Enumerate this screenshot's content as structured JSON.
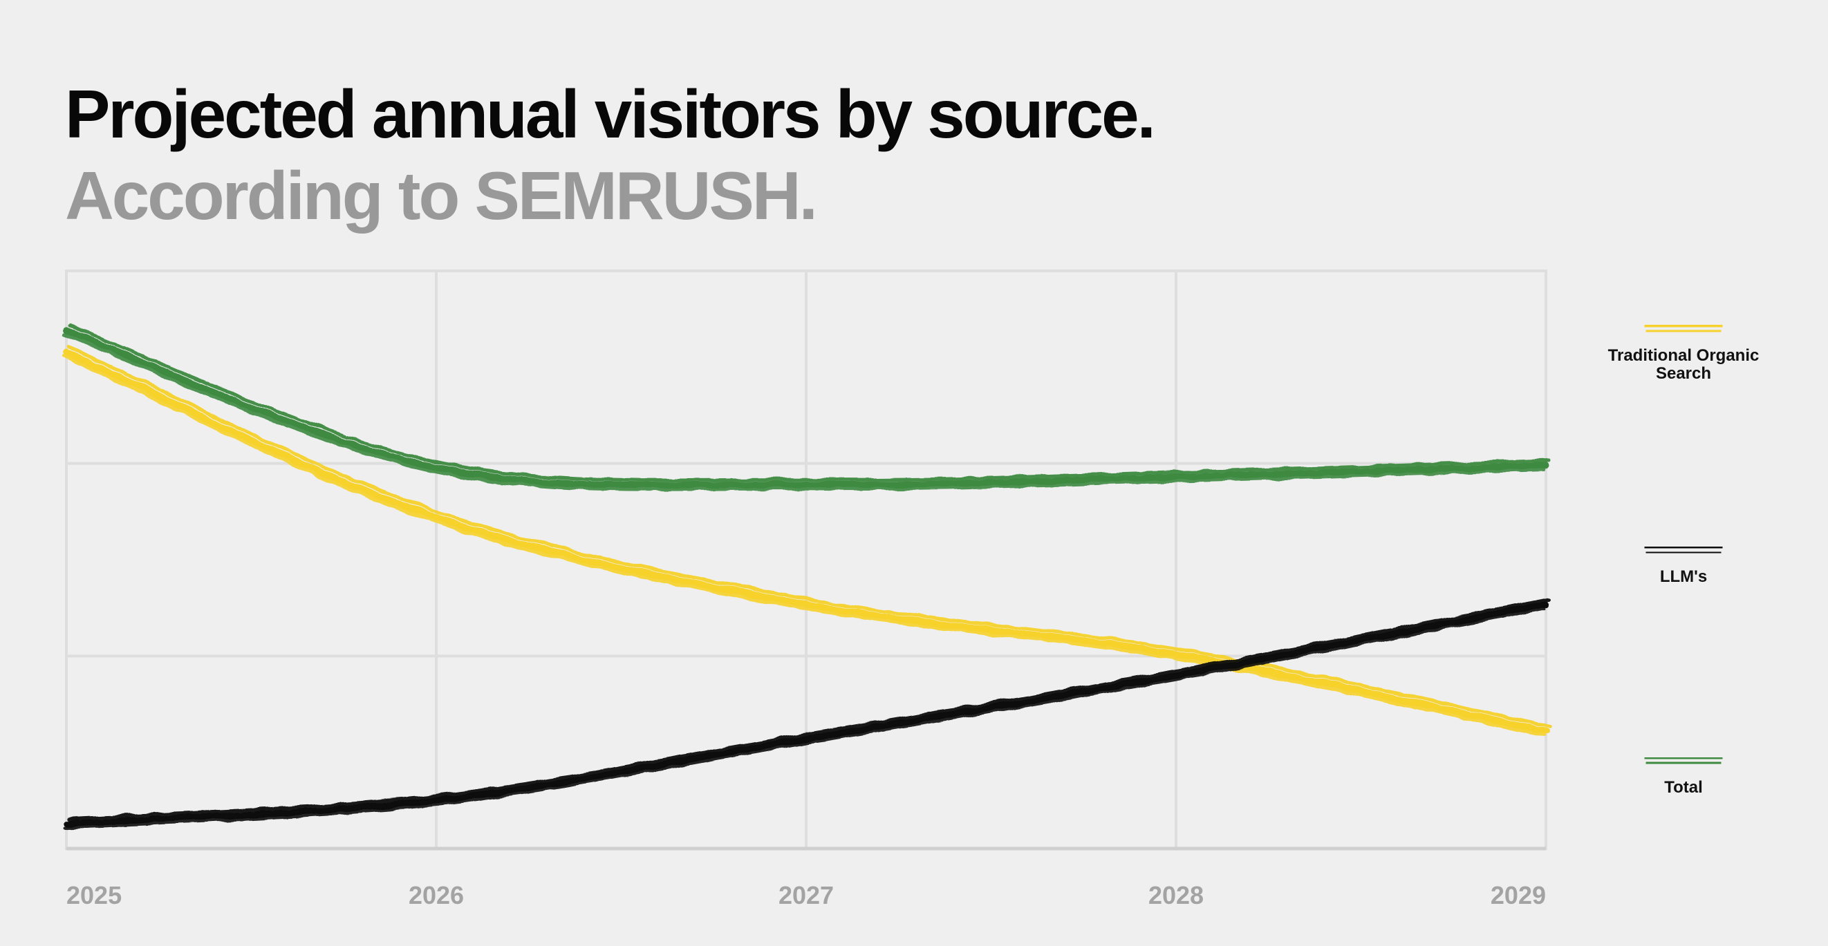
{
  "chart_data": {
    "type": "line",
    "title": "Projected annual visitors by source.",
    "subtitle": "According to SEMRUSH.",
    "x": [
      2025,
      2026,
      2027,
      2028,
      2029
    ],
    "x_tick_labels": [
      "2025",
      "2026",
      "2027",
      "2028",
      "2029"
    ],
    "xlim": [
      2025,
      2029
    ],
    "ylim": [
      0,
      3
    ],
    "y_gridlines": [
      1,
      2
    ],
    "grid": true,
    "y_axis_labels_visible": false,
    "legend_position": "right",
    "series": [
      {
        "name": "Traditional Organic Search",
        "color": "#f7d22a",
        "values": [
          2.58,
          1.72,
          1.27,
          1.01,
          0.61
        ]
      },
      {
        "name": "LLM's",
        "color": "#0a0a0a",
        "values": [
          0.13,
          0.25,
          0.57,
          0.9,
          1.27
        ]
      },
      {
        "name": "Total",
        "color": "#3d8a41",
        "values": [
          2.69,
          1.98,
          1.89,
          1.93,
          1.99
        ]
      }
    ]
  },
  "colors": {
    "background": "#efefef",
    "grid": "#dedede",
    "axis": "#cfcfcf",
    "tick_text": "#a3a3a3",
    "title": "#080808",
    "subtitle": "#999999"
  }
}
